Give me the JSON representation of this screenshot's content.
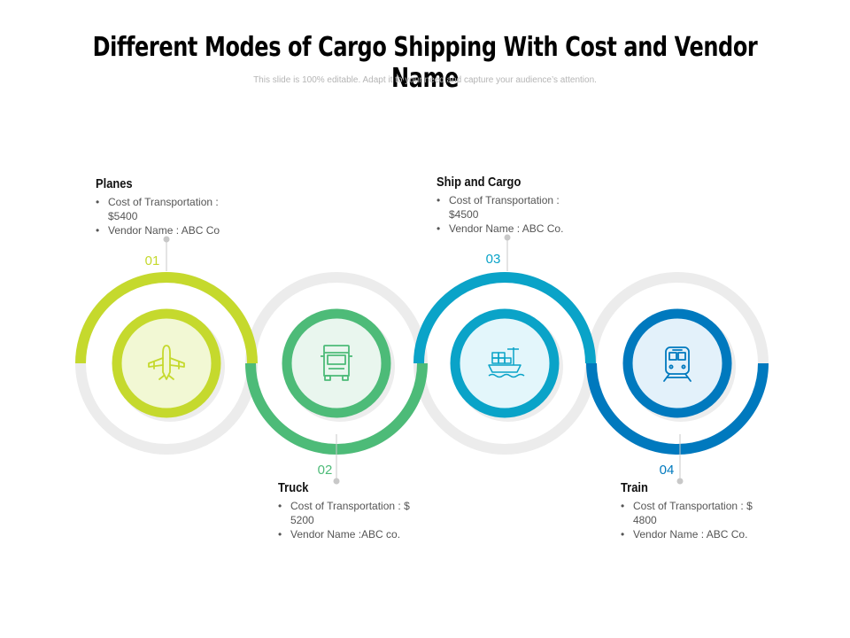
{
  "title": "Different Modes of Cargo Shipping With Cost and Vendor Name",
  "subtitle": "This slide is 100% editable. Adapt it to your need and capture your audience’s attention.",
  "colors": {
    "step1": "#c5d92d",
    "step2": "#4dbb78",
    "step3": "#0aa3c8",
    "step4": "#0079be",
    "ring_bg": "#ececec"
  },
  "steps": [
    {
      "number": "01",
      "heading": "Planes",
      "icon": "airplane-icon",
      "bullets": [
        "Cost of Transportation : $5400",
        "Vendor Name : ABC Co"
      ]
    },
    {
      "number": "02",
      "heading": "Truck",
      "icon": "truck-icon",
      "bullets": [
        "Cost of Transportation : $ 5200",
        "Vendor Name :ABC  co."
      ]
    },
    {
      "number": "03",
      "heading": "Ship and Cargo",
      "icon": "cargo-ship-icon",
      "bullets": [
        "Cost of Transportation : $4500",
        "Vendor Name : ABC Co."
      ]
    },
    {
      "number": "04",
      "heading": "Train",
      "icon": "train-icon",
      "bullets": [
        "Cost of Transportation : $ 4800",
        "Vendor Name : ABC Co."
      ]
    }
  ]
}
